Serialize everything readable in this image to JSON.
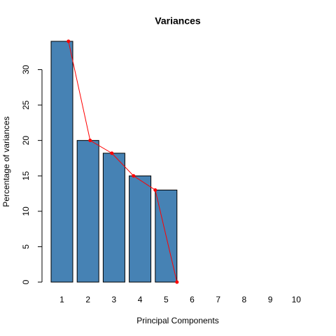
{
  "chart_data": {
    "type": "bar",
    "title": "Variances",
    "xlabel": "Principal Components",
    "ylabel": "Percentage of variances",
    "categories": [
      "1",
      "2",
      "3",
      "4",
      "5",
      "6",
      "7",
      "8",
      "9",
      "10"
    ],
    "values": [
      34,
      20,
      18.2,
      15,
      13,
      0,
      null,
      null,
      null,
      null
    ],
    "color": "#4682b4",
    "line_color": "#ff0000",
    "ylim": [
      0,
      34
    ],
    "yticks": [
      0,
      5,
      10,
      15,
      20,
      25,
      30
    ]
  }
}
